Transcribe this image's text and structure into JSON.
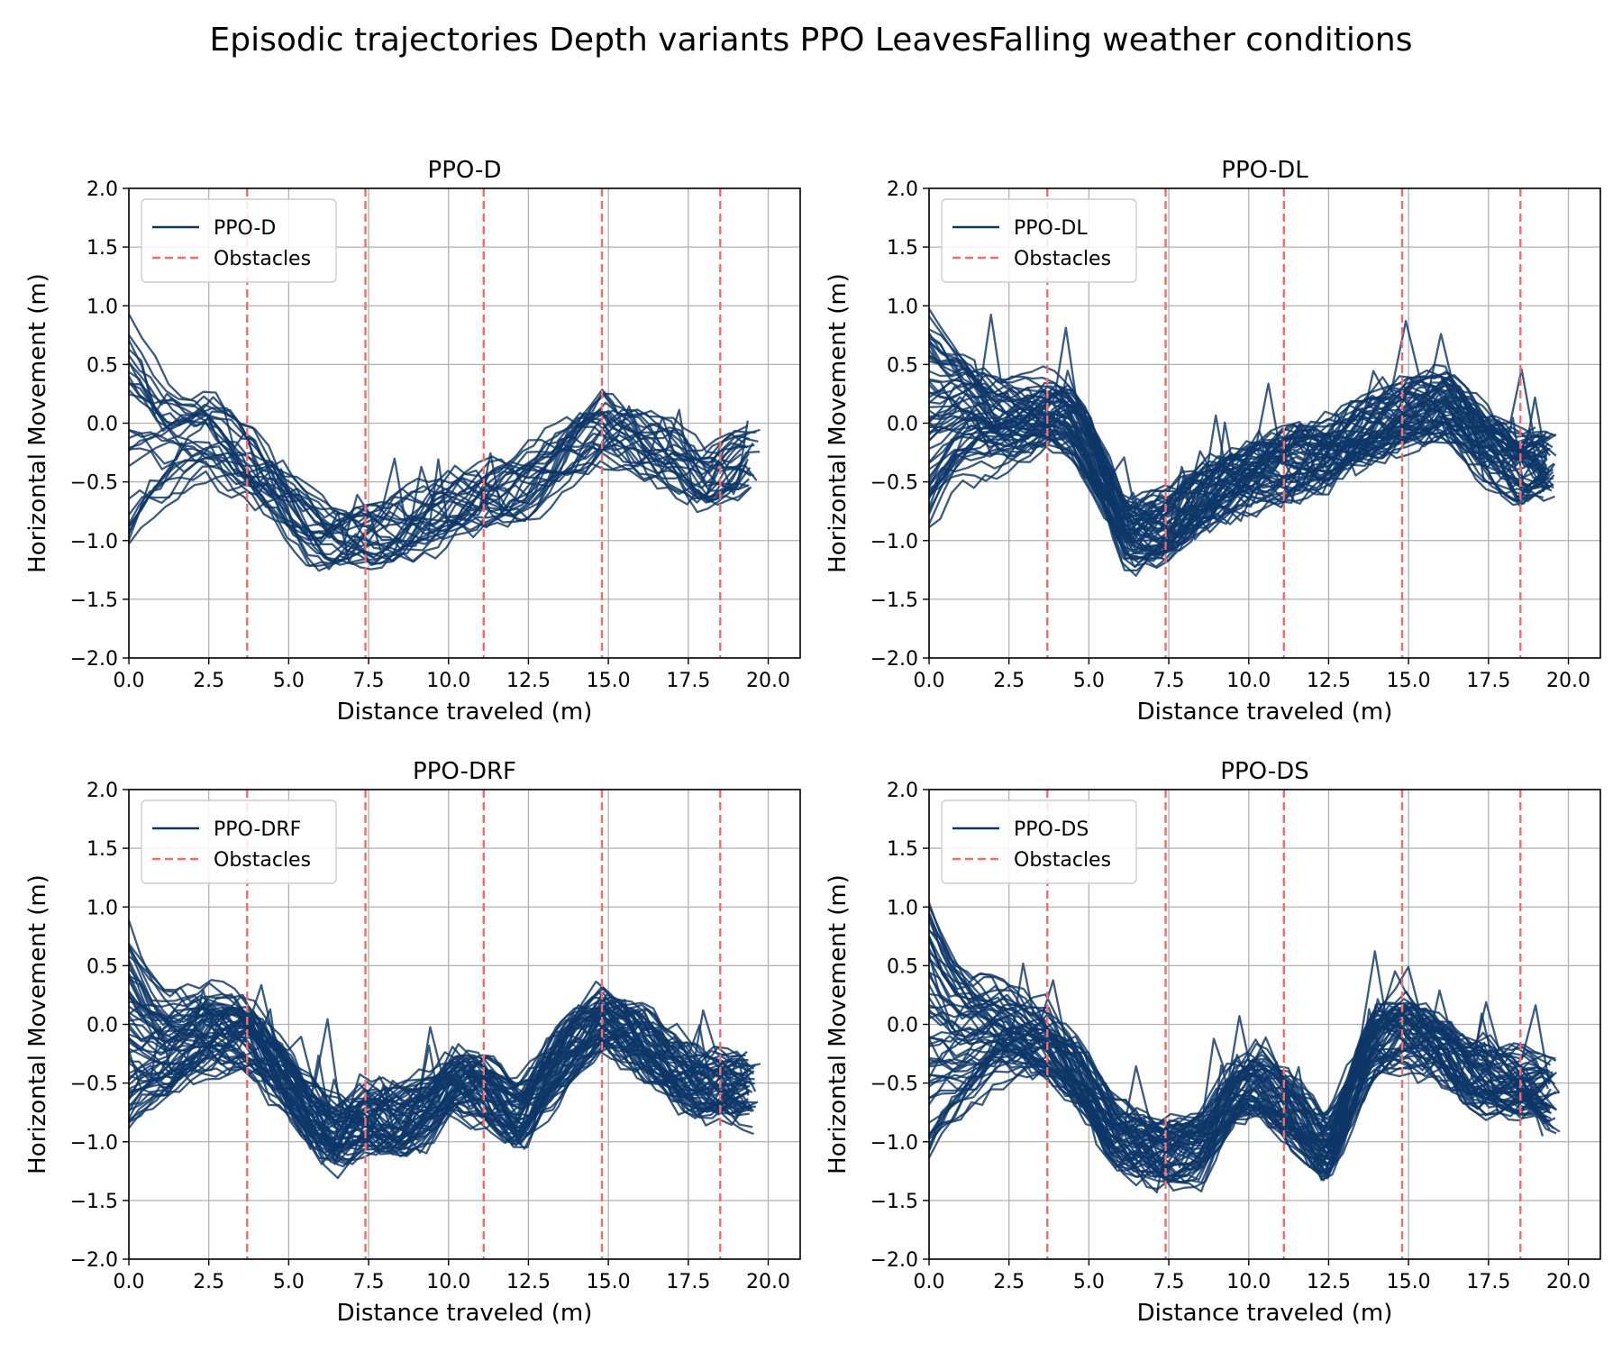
{
  "figure": {
    "title": "Episodic trajectories Depth variants PPO LeavesFalling weather conditions"
  },
  "colors": {
    "trajectory": "#0d3768",
    "obstacle": "#f36b6b",
    "grid": "#b0b0b0"
  },
  "chart_data": [
    {
      "type": "line",
      "title": "PPO-D",
      "xlabel": "Distance traveled (m)",
      "ylabel": "Horizontal Movement (m)",
      "xlim": [
        0,
        21
      ],
      "ylim": [
        -2,
        2
      ],
      "xticks": [
        "0.0",
        "2.5",
        "5.0",
        "7.5",
        "10.0",
        "12.5",
        "15.0",
        "17.5",
        "20.0"
      ],
      "yticks": [
        "2.0",
        "1.5",
        "1.0",
        "0.5",
        "0.0",
        "−0.5",
        "−1.0",
        "−1.5",
        "−2.0"
      ],
      "grid": true,
      "legend": {
        "position": "upper-left",
        "entries": [
          "PPO-D",
          "Obstacles"
        ]
      },
      "obstacles_x": [
        3.7,
        7.4,
        11.1,
        14.8,
        18.5
      ],
      "trajectory_count": 30,
      "mean_path": {
        "x": [
          0,
          1,
          2,
          2.5,
          3.7,
          4.5,
          5.5,
          6.3,
          7.4,
          8.5,
          9.5,
          11.1,
          12.5,
          13.8,
          14.8,
          16,
          17,
          18,
          18.5,
          19.5
        ],
        "y": [
          0.1,
          -0.3,
          -0.15,
          -0.1,
          -0.35,
          -0.55,
          -0.9,
          -1.02,
          -0.95,
          -0.9,
          -0.8,
          -0.65,
          -0.5,
          -0.25,
          -0.05,
          -0.15,
          -0.25,
          -0.5,
          -0.45,
          -0.35
        ]
      },
      "y_range_at_start": [
        -1.1,
        0.95
      ]
    },
    {
      "type": "line",
      "title": "PPO-DL",
      "xlabel": "Distance traveled (m)",
      "ylabel": "Horizontal Movement (m)",
      "xlim": [
        0,
        21
      ],
      "ylim": [
        -2,
        2
      ],
      "xticks": [
        "0.0",
        "2.5",
        "5.0",
        "7.5",
        "10.0",
        "12.5",
        "15.0",
        "17.5",
        "20.0"
      ],
      "yticks": [
        "2.0",
        "1.5",
        "1.0",
        "0.5",
        "0.0",
        "−0.5",
        "−1.0",
        "−1.5",
        "−2.0"
      ],
      "grid": true,
      "legend": {
        "position": "upper-left",
        "entries": [
          "PPO-DL",
          "Obstacles"
        ]
      },
      "obstacles_x": [
        3.7,
        7.4,
        11.1,
        14.8,
        18.5
      ],
      "trajectory_count": 60,
      "mean_path": {
        "x": [
          0,
          1,
          2,
          3,
          3.7,
          4.5,
          5.2,
          6.2,
          7.4,
          8.5,
          9.5,
          10.5,
          11.1,
          12.5,
          13.5,
          14.8,
          16.2,
          17.2,
          18.5,
          19.6
        ],
        "y": [
          0.05,
          0.2,
          0.0,
          0.05,
          0.1,
          0.0,
          -0.4,
          -1.0,
          -0.85,
          -0.6,
          -0.5,
          -0.45,
          -0.4,
          -0.25,
          -0.05,
          0.1,
          0.15,
          -0.15,
          -0.4,
          -0.35
        ]
      },
      "y_range_at_start": [
        -0.95,
        0.92
      ]
    },
    {
      "type": "line",
      "title": "PPO-DRF",
      "xlabel": "Distance traveled (m)",
      "ylabel": "Horizontal Movement (m)",
      "xlim": [
        0,
        21
      ],
      "ylim": [
        -2,
        2
      ],
      "xticks": [
        "0.0",
        "2.5",
        "5.0",
        "7.5",
        "10.0",
        "12.5",
        "15.0",
        "17.5",
        "20.0"
      ],
      "yticks": [
        "2.0",
        "1.5",
        "1.0",
        "0.5",
        "0.0",
        "−0.5",
        "−1.0",
        "−1.5",
        "−2.0"
      ],
      "grid": true,
      "legend": {
        "position": "upper-left",
        "entries": [
          "PPO-DRF",
          "Obstacles"
        ]
      },
      "obstacles_x": [
        3.7,
        7.4,
        11.1,
        14.8,
        18.5
      ],
      "trajectory_count": 60,
      "mean_path": {
        "x": [
          0,
          1,
          2.5,
          3.7,
          4.8,
          5.8,
          6.5,
          7.4,
          8.5,
          9.5,
          10.2,
          11.1,
          12.2,
          13.5,
          14.8,
          16,
          17,
          18,
          18.5,
          19.6
        ],
        "y": [
          -0.2,
          -0.3,
          -0.05,
          -0.1,
          -0.45,
          -0.8,
          -0.95,
          -0.8,
          -0.85,
          -0.7,
          -0.5,
          -0.55,
          -0.8,
          -0.3,
          0.05,
          -0.1,
          -0.35,
          -0.55,
          -0.55,
          -0.6
        ]
      },
      "y_range_at_start": [
        -1.0,
        0.9
      ]
    },
    {
      "type": "line",
      "title": "PPO-DS",
      "xlabel": "Distance traveled (m)",
      "ylabel": "Horizontal Movement (m)",
      "xlim": [
        0,
        21
      ],
      "ylim": [
        -2,
        2
      ],
      "xticks": [
        "0.0",
        "2.5",
        "5.0",
        "7.5",
        "10.0",
        "12.5",
        "15.0",
        "17.5",
        "20.0"
      ],
      "yticks": [
        "2.0",
        "1.5",
        "1.0",
        "0.5",
        "0.0",
        "−0.5",
        "−1.0",
        "−1.5",
        "−2.0"
      ],
      "grid": true,
      "legend": {
        "position": "upper-left",
        "entries": [
          "PPO-DS",
          "Obstacles"
        ]
      },
      "obstacles_x": [
        3.7,
        7.4,
        11.1,
        14.8,
        18.5
      ],
      "trajectory_count": 60,
      "mean_path": {
        "x": [
          0,
          1,
          2,
          3,
          3.7,
          4.8,
          5.8,
          6.8,
          7.4,
          8.5,
          9.5,
          10.2,
          11.1,
          12.5,
          13.8,
          14.8,
          16,
          17,
          18.5,
          19.6
        ],
        "y": [
          -0.1,
          -0.2,
          -0.05,
          -0.15,
          -0.2,
          -0.5,
          -0.95,
          -1.1,
          -1.15,
          -1.05,
          -0.6,
          -0.45,
          -0.65,
          -1.1,
          -0.2,
          -0.05,
          -0.2,
          -0.45,
          -0.5,
          -0.6
        ]
      },
      "y_range_at_start": [
        -1.05,
        1.05
      ]
    }
  ]
}
